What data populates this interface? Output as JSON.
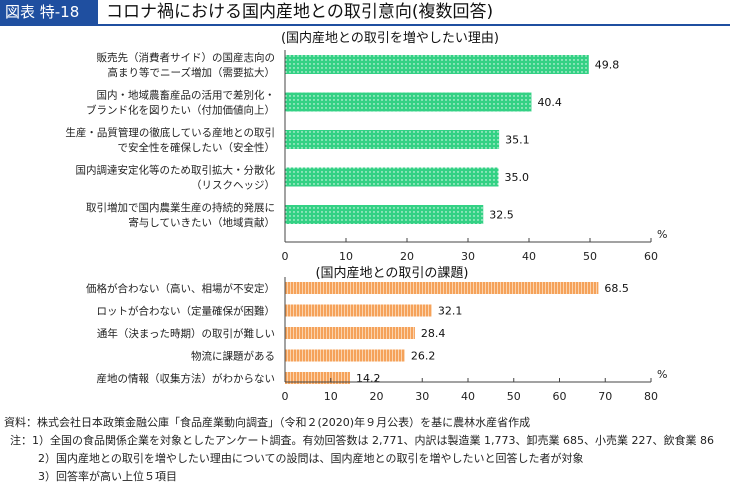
{
  "header": {
    "label": "図表 特-18",
    "title": "コロナ禍における国内産地との取引意向(複数回答)"
  },
  "colors": {
    "title_bg": "#1f4fa0",
    "bar_green": "#33d184",
    "bar_orange": "#f5a25a"
  },
  "chart_data": [
    {
      "type": "bar",
      "orientation": "horizontal",
      "title": "(国内産地との取引を増やしたい理由)",
      "categories": [
        [
          "販売先（消費者サイド）の国産志向の",
          "高まり等でニーズ増加（需要拡大）"
        ],
        [
          "国内・地域農畜産品の活用で差別化・",
          "ブランド化を図りたい（付加価値向上）"
        ],
        [
          "生産・品質管理の徹底している産地との取引",
          "で安全性を確保したい（安全性）"
        ],
        [
          "国内調達安定化等のため取引拡大・分散化",
          "（リスクヘッジ）"
        ],
        [
          "取引増加で国内農業生産の持続的発展に",
          "寄与していきたい（地域貢献）"
        ]
      ],
      "values": [
        49.8,
        40.4,
        35.1,
        35.0,
        32.5
      ],
      "value_labels": [
        "49.8",
        "40.4",
        "35.1",
        "35.0",
        "32.5"
      ],
      "xlim": [
        0,
        60
      ],
      "ticks": [
        "0",
        "10",
        "20",
        "30",
        "40",
        "50",
        "60"
      ],
      "unit": "%",
      "grid": false
    },
    {
      "type": "bar",
      "orientation": "horizontal",
      "title": "(国内産地との取引の課題)",
      "categories": [
        [
          "価格が合わない（高い、相場が不安定）"
        ],
        [
          "ロットが合わない（定量確保が困難）"
        ],
        [
          "通年（決まった時期）の取引が難しい"
        ],
        [
          "物流に課題がある"
        ],
        [
          "産地の情報（収集方法）がわからない"
        ]
      ],
      "values": [
        68.5,
        32.1,
        28.4,
        26.2,
        14.2
      ],
      "value_labels": [
        "68.5",
        "32.1",
        "28.4",
        "26.2",
        "14.2"
      ],
      "xlim": [
        0,
        80
      ],
      "ticks": [
        "0",
        "10",
        "20",
        "30",
        "40",
        "50",
        "60",
        "70",
        "80"
      ],
      "unit": "%",
      "grid": false
    }
  ],
  "notes": {
    "source": "資料：株式会社日本政策金融公庫「食品産業動向調査」（令和２(2020)年９月公表）を基に農林水産省作成",
    "note1": "注：1）全国の食品関係企業を対象としたアンケート調査。有効回答数は 2,771、内訳は製造業 1,773、卸売業 685、小売業 227、飲食業 86",
    "note2": "2）国内産地との取引を増やしたい理由についての設問は、国内産地との取引を増やしたいと回答した者が対象",
    "note3": "3）回答率が高い上位５項目"
  }
}
